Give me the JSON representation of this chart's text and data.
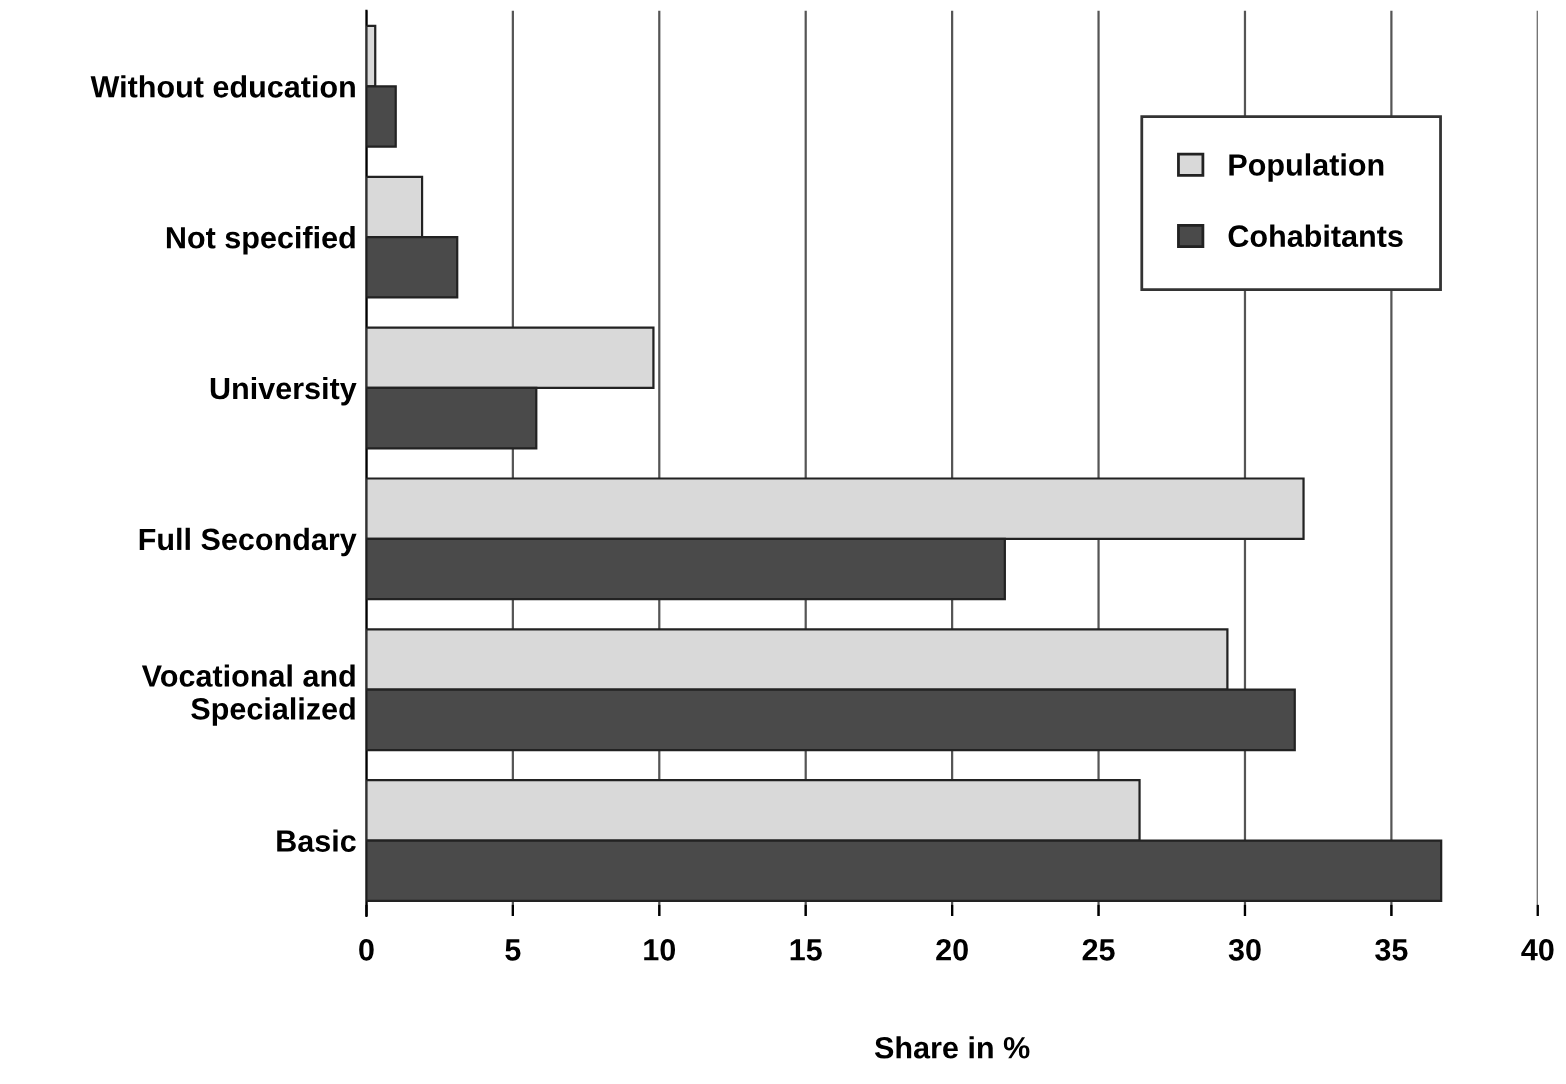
{
  "chart_data": {
    "type": "bar",
    "orientation": "horizontal",
    "xlabel": "Share in %",
    "categories": [
      "Without education",
      "Not specified",
      "University",
      "Full Secondary",
      "Vocational and\nSpecialized",
      "Basic"
    ],
    "series": [
      {
        "name": "Population",
        "color": "#d9d9d9",
        "values": [
          0.3,
          1.9,
          9.8,
          32.0,
          29.4,
          26.4
        ]
      },
      {
        "name": "Cohabitants",
        "color": "#4a4a4a",
        "values": [
          1.0,
          3.1,
          5.8,
          21.8,
          31.7,
          36.7
        ]
      }
    ],
    "xlim": [
      0,
      40
    ],
    "xticks": [
      0,
      5,
      10,
      15,
      20,
      25,
      30,
      35,
      40
    ],
    "grid": "x",
    "legend": "top right"
  }
}
